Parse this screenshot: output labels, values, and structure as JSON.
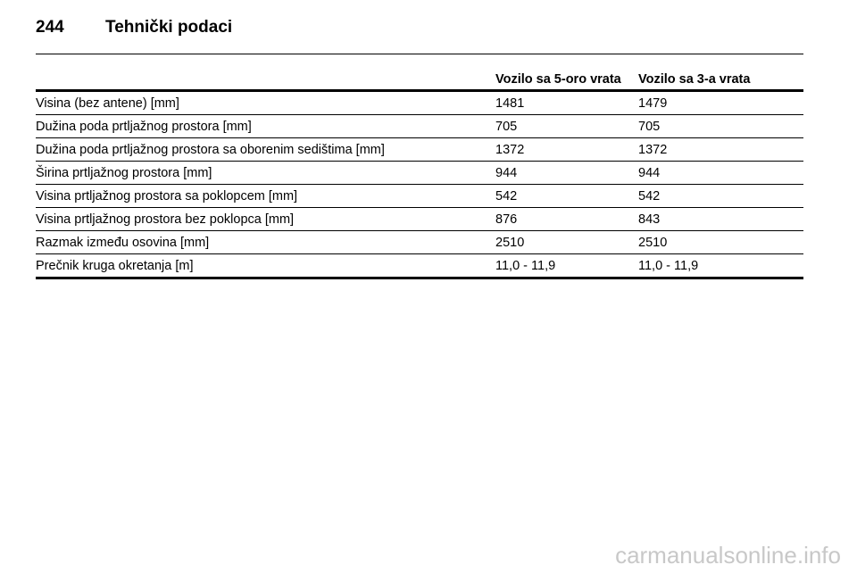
{
  "header": {
    "page": "244",
    "title": "Tehnički podaci"
  },
  "table": {
    "columns": [
      "Vozilo sa 5-oro vrata",
      "Vozilo sa 3-a vrata"
    ],
    "rows": [
      [
        "Visina (bez antene) [mm]",
        "1481",
        "1479"
      ],
      [
        "Dužina poda prtljažnog prostora [mm]",
        "705",
        "705"
      ],
      [
        "Dužina poda prtljažnog prostora sa oborenim sedištima [mm]",
        "1372",
        "1372"
      ],
      [
        "Širina prtljažnog prostora [mm]",
        "944",
        "944"
      ],
      [
        "Visina prtljažnog prostora sa poklopcem [mm]",
        "542",
        "542"
      ],
      [
        "Visina prtljažnog prostora bez poklopca [mm]",
        "876",
        "843"
      ],
      [
        "Razmak između osovina [mm]",
        "2510",
        "2510"
      ],
      [
        "Prečnik kruga okretanja [m]",
        "11,0 - 11,9",
        "11,0 - 11,9"
      ]
    ]
  },
  "footer": {
    "watermark": "carmanualsonline.info"
  }
}
